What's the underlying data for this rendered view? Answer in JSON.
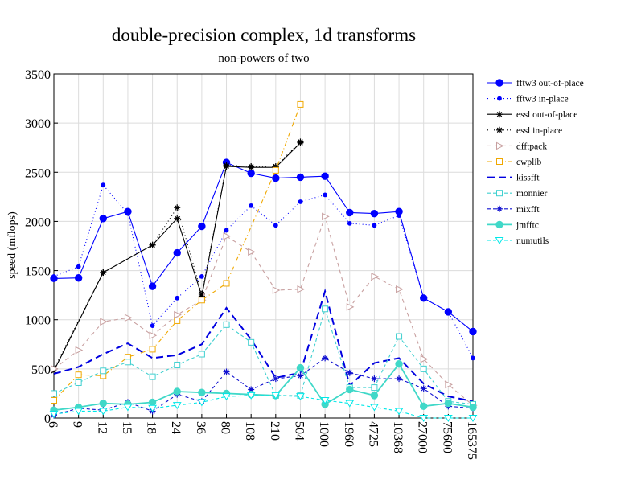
{
  "chart_data": {
    "type": "line",
    "title": "double-precision complex, 1d transforms",
    "subtitle": "non-powers of two",
    "xlabel": "",
    "ylabel": "speed (mflops)",
    "ylim": [
      0,
      3500
    ],
    "yticks": [
      0,
      500,
      1000,
      1500,
      2000,
      2500,
      3000,
      3500
    ],
    "categories": [
      "6",
      "9",
      "12",
      "15",
      "18",
      "24",
      "36",
      "80",
      "108",
      "210",
      "504",
      "1000",
      "1960",
      "4725",
      "10368",
      "27000",
      "75600",
      "165375"
    ],
    "grid": true,
    "legend_position": "right",
    "series": [
      {
        "name": "fftw3 out-of-place",
        "color": "#0000ff",
        "dash": "",
        "marker": "circle",
        "marker_fill": true,
        "values": [
          1420,
          1425,
          2030,
          2100,
          1340,
          1680,
          1950,
          2600,
          2490,
          2440,
          2450,
          2460,
          2090,
          2080,
          2100,
          1220,
          1080,
          880
        ]
      },
      {
        "name": "fftw3 in-place",
        "color": "#0000ff",
        "dash": "1 3",
        "marker": "dot",
        "marker_fill": true,
        "values": [
          1440,
          1540,
          2370,
          2080,
          940,
          1220,
          1440,
          1910,
          2160,
          1960,
          2200,
          2270,
          1980,
          1960,
          2060,
          1220,
          1080,
          610
        ]
      },
      {
        "name": "essl out-of-place",
        "color": "#000000",
        "dash": "",
        "marker": "star",
        "marker_fill": false,
        "values": [
          480,
          null,
          1480,
          null,
          1760,
          2030,
          1240,
          2560,
          2550,
          2550,
          2800,
          null,
          null,
          null,
          null,
          null,
          null,
          null
        ]
      },
      {
        "name": "essl in-place",
        "color": "#000000",
        "dash": "1 3",
        "marker": "star",
        "marker_fill": false,
        "values": [
          500,
          null,
          1480,
          null,
          1760,
          2140,
          1260,
          2570,
          2560,
          2560,
          2810,
          null,
          null,
          null,
          null,
          null,
          null,
          null
        ]
      },
      {
        "name": "dfftpack",
        "color": "#c8a0a0",
        "dash": "5 4",
        "marker": "triangle-right",
        "marker_fill": false,
        "values": [
          500,
          690,
          980,
          1020,
          840,
          1050,
          1200,
          1850,
          1690,
          1300,
          1310,
          2050,
          1130,
          1440,
          1310,
          600,
          340,
          130
        ]
      },
      {
        "name": "cwplib",
        "color": "#f0a800",
        "dash": "6 3 1 3",
        "marker": "square",
        "marker_fill": false,
        "values": [
          180,
          440,
          430,
          620,
          700,
          990,
          1200,
          1370,
          null,
          2520,
          3190,
          null,
          null,
          null,
          null,
          null,
          null,
          null
        ]
      },
      {
        "name": "kissfft",
        "color": "#0000e0",
        "dash": "9 5",
        "marker": "none",
        "marker_fill": false,
        "values": [
          450,
          520,
          650,
          760,
          610,
          640,
          750,
          1120,
          800,
          410,
          460,
          1290,
          330,
          560,
          610,
          350,
          220,
          170
        ]
      },
      {
        "name": "monnier",
        "color": "#40d0d0",
        "dash": "4 3",
        "marker": "square",
        "marker_fill": false,
        "values": [
          250,
          360,
          480,
          570,
          420,
          540,
          650,
          950,
          770,
          230,
          230,
          1110,
          310,
          310,
          830,
          500,
          170,
          140
        ]
      },
      {
        "name": "mixfft",
        "color": "#1010d0",
        "dash": "4 3",
        "marker": "star",
        "marker_fill": false,
        "values": [
          30,
          100,
          80,
          160,
          70,
          240,
          170,
          470,
          290,
          400,
          430,
          610,
          460,
          400,
          400,
          300,
          120,
          100
        ]
      },
      {
        "name": "jmfftc",
        "color": "#40d8c8",
        "dash": "",
        "marker": "circle",
        "marker_fill": true,
        "values": [
          80,
          110,
          150,
          140,
          160,
          270,
          260,
          250,
          240,
          230,
          510,
          140,
          290,
          230,
          550,
          120,
          150,
          110
        ]
      },
      {
        "name": "numutils",
        "color": "#00e8e8",
        "dash": "4 3",
        "marker": "triangle-down",
        "marker_fill": false,
        "values": [
          40,
          70,
          70,
          110,
          100,
          130,
          160,
          220,
          230,
          230,
          220,
          180,
          150,
          110,
          70,
          0,
          0,
          0
        ]
      }
    ]
  }
}
